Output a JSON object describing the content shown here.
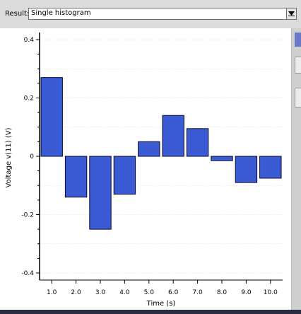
{
  "result": {
    "label": "Result:",
    "selected": "Single histogram"
  },
  "icons": {
    "dropdown": "chevron-down-icon"
  },
  "colors": {
    "bar_fill": "#3a5bd4",
    "bar_stroke": "#0a0a2a",
    "grid": "#c8c8c8"
  },
  "chart_data": {
    "type": "bar",
    "categories": [
      "1.0",
      "2.0",
      "3.0",
      "4.0",
      "5.0",
      "6.0",
      "7.0",
      "8.0",
      "9.0",
      "10.0"
    ],
    "values": [
      0.27,
      -0.14,
      -0.25,
      -0.13,
      0.05,
      0.14,
      0.095,
      -0.015,
      -0.09,
      -0.075
    ],
    "xlabel": "Time (s)",
    "ylabel": "Voltage v(11) (V)",
    "ylim": [
      -0.4,
      0.4
    ],
    "yticks": [
      0.4,
      0.2,
      0,
      -0.2,
      -0.4
    ],
    "ytick_labels": [
      "0.4",
      "0.2",
      "0",
      "-0.2",
      "-0.4"
    ],
    "grid": true
  }
}
